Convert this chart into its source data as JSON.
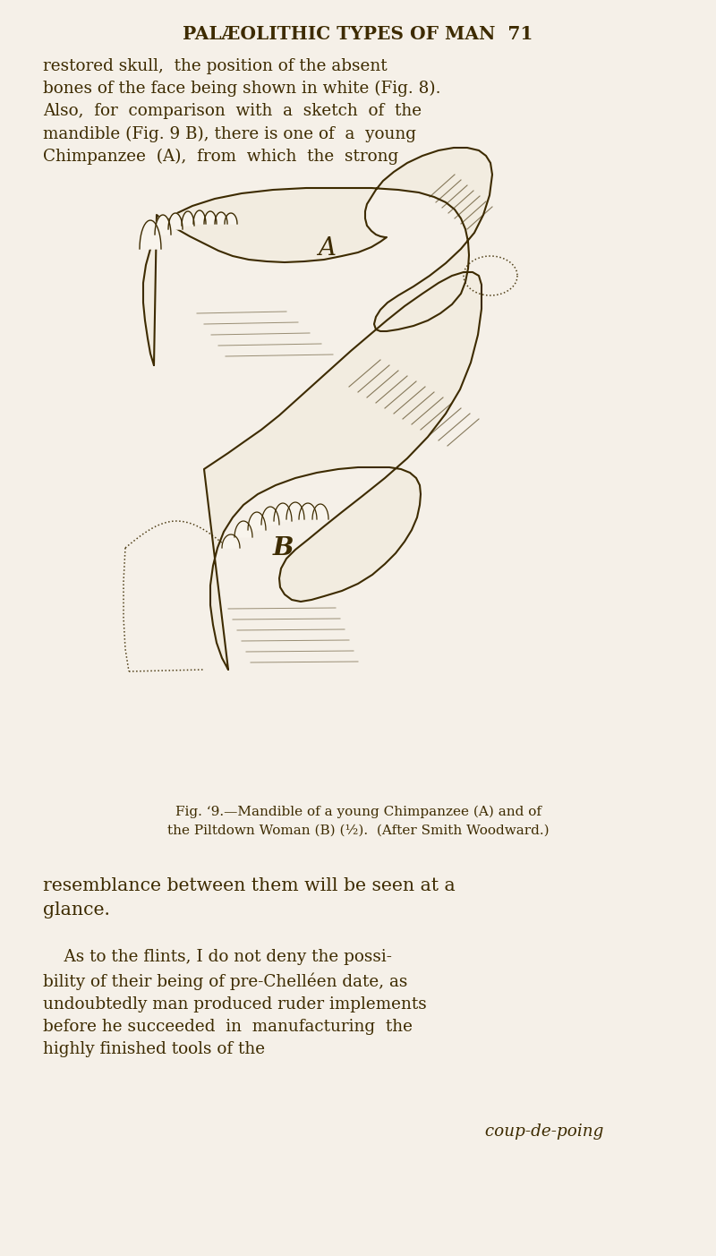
{
  "background_color": "#f5f0e8",
  "text_color": "#3d2b00",
  "header_text": "PALÆOLITHIC TYPES OF MAN  71",
  "header_fontsize": 14.5,
  "body_fontsize": 13.2,
  "caption_fontsize": 11.0,
  "body_text_1": "restored skull,  the position of the absent\nbones of the face being shown in white (Fig. 8).\nAlso,  for  comparison  with  a  sketch  of  the\nmandible (Fig. 9 B), there is one of  a  young\nChimpanzee  (A),  from  which  the  strong",
  "caption_text_line1": "Fig. ‘9.—Mandible of a young Chimpanzee (A) and of",
  "caption_text_line2": "the Piltdown Woman (B) (½).  (After Smith Woodward.)",
  "body_text_2": "resemblance between them will be seen at a\nglance.",
  "body_text_3": "    As to the flints, I do not deny the possi-\nbility of their being of pre-Chelléen date, as\nundoubtedly man produced ruder implements\nbefore he succeeded  in  manufacturing  the\nhighly finished tools of the",
  "italic_text": " coup-de-poing"
}
